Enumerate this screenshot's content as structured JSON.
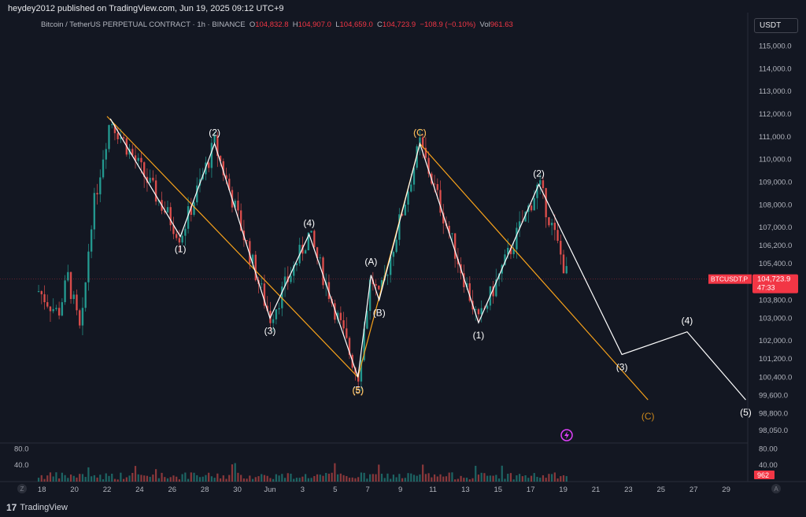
{
  "header": {
    "publisher": "heydey2012 published on TradingView.com, Jun 19, 2025 09:12 UTC+9",
    "symbol_desc": "Bitcoin / TetherUS PERPETUAL CONTRACT · 1h · BINANCE",
    "ohlc": {
      "o": "104,832.8",
      "h": "104,907.0",
      "l": "104,659.0",
      "c": "104,723.9",
      "chg": "−108.9 (−0.10%)",
      "vol": "961.63"
    },
    "labels": {
      "o": "O",
      "h": "H",
      "l": "L",
      "c": "C",
      "vol": "Vol"
    },
    "currency": "USDT"
  },
  "price_tag": {
    "symbol": "BTCUSDT.P",
    "price": "104,723.9",
    "countdown": "47:33",
    "value": 104723.9
  },
  "volume_tag": "962",
  "footer": {
    "brand": "TradingView",
    "z_label": "Z",
    "a_label": "A"
  },
  "colors": {
    "bg": "#131722",
    "up": "#26a69a",
    "down": "#ef5350",
    "wave_white": "#ffffff",
    "wave_orange": "#f7a21b",
    "price_tag": "#f23645",
    "magenta": "#e040fb"
  },
  "chart_data": {
    "type": "line",
    "price_axis_ticks": [
      "115,000.0",
      "114,000.0",
      "113,000.0",
      "112,000.0",
      "111,000.0",
      "110,000.0",
      "109,000.0",
      "108,000.0",
      "107,000.0",
      "106,200.0",
      "105,400.0",
      "103,800.0",
      "103,000.0",
      "102,000.0",
      "101,200.0",
      "100,400.0",
      "99,600.0",
      "98,800.0",
      "98,050.0"
    ],
    "price_axis_values": [
      115000,
      114000,
      113000,
      112000,
      111000,
      110000,
      109000,
      108000,
      107000,
      106200,
      105400,
      103800,
      103000,
      102000,
      101200,
      100400,
      99600,
      98800,
      98050
    ],
    "volume_axis_ticks": [
      "80.00",
      "40.00"
    ],
    "volume_axis_values": [
      80,
      40
    ],
    "volume_left_ticks": [
      "80.0",
      "40.0"
    ],
    "x_ticks": [
      "18",
      "20",
      "22",
      "24",
      "26",
      "28",
      "30",
      "Jun",
      "3",
      "5",
      "7",
      "9",
      "11",
      "13",
      "15",
      "17",
      "19",
      "21",
      "23",
      "25",
      "27",
      "29"
    ],
    "x_tick_days": [
      -14,
      -12,
      -10,
      -8,
      -6,
      -4,
      -2,
      0,
      2,
      4,
      6,
      8,
      10,
      12,
      14,
      16,
      18,
      20,
      22,
      24,
      26,
      28
    ],
    "white_wave": [
      {
        "day": -9.8,
        "price": 111800
      },
      {
        "day": -5.5,
        "price": 106600,
        "label": "(1)"
      },
      {
        "day": -3.4,
        "price": 110700,
        "label": "(2)"
      },
      {
        "day": 0,
        "price": 103000,
        "label": "(3)"
      },
      {
        "day": 2.4,
        "price": 106700,
        "label": "(4)"
      },
      {
        "day": 5.4,
        "price": 100400,
        "label": "(5)"
      },
      {
        "day": 6.2,
        "price": 104900,
        "label": "(A)"
      },
      {
        "day": 6.7,
        "price": 103800,
        "label": "(B)"
      },
      {
        "day": 9.2,
        "price": 110700,
        "label": "(C)"
      },
      {
        "day": 12.8,
        "price": 102800,
        "label": "(1)"
      },
      {
        "day": 16.5,
        "price": 108900,
        "label": "(2)"
      },
      {
        "day": 21.6,
        "price": 101400,
        "label": "(3)"
      },
      {
        "day": 25.6,
        "price": 102400,
        "label": "(4)"
      },
      {
        "day": 29.2,
        "price": 99400,
        "label": "(5)"
      }
    ],
    "orange_wave": [
      {
        "day": -10,
        "price": 111900
      },
      {
        "day": 5.4,
        "price": 100400,
        "label": "(5)"
      },
      {
        "day": 9.2,
        "price": 110700,
        "label": "(C)"
      },
      {
        "day": 23.2,
        "price": 99400,
        "label": "(C)"
      }
    ],
    "last_price": 104723.9
  }
}
